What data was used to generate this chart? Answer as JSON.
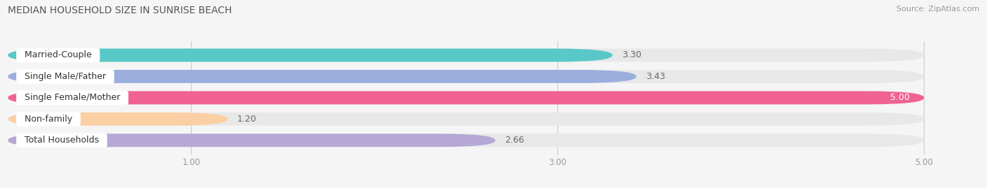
{
  "title": "MEDIAN HOUSEHOLD SIZE IN SUNRISE BEACH",
  "source": "Source: ZipAtlas.com",
  "categories": [
    "Married-Couple",
    "Single Male/Father",
    "Single Female/Mother",
    "Non-family",
    "Total Households"
  ],
  "values": [
    3.3,
    3.43,
    5.0,
    1.2,
    2.66
  ],
  "bar_colors": [
    "#58C8C8",
    "#9BAEDE",
    "#F06292",
    "#FBCFA4",
    "#B5A8D5"
  ],
  "background_color": "#f5f5f5",
  "bar_background_color": "#e8e8e8",
  "xlim_data": [
    0.0,
    5.3
  ],
  "xmin": 0.0,
  "xmax": 5.0,
  "xticks": [
    1.0,
    3.0,
    5.0
  ],
  "title_fontsize": 10,
  "source_fontsize": 8,
  "label_fontsize": 9,
  "value_fontsize": 9,
  "bar_height": 0.62,
  "value_color_inside": "white",
  "value_color_outside": "#666666",
  "value_threshold": 4.8
}
